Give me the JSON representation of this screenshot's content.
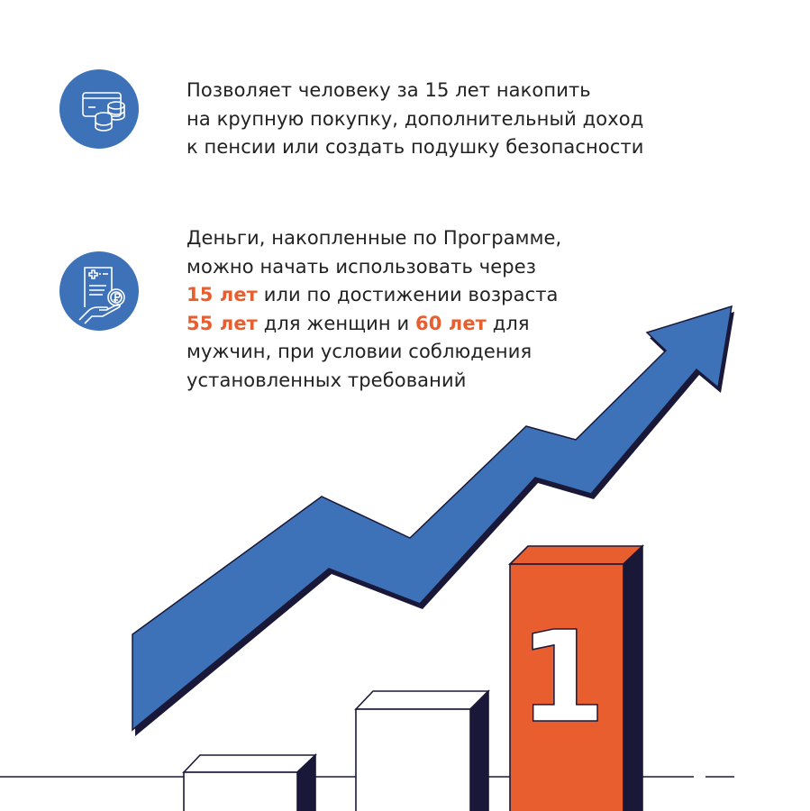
{
  "block1": {
    "icon": "card-coins-icon",
    "lines": [
      "Позволяет человеку за 15 лет накопить",
      "на крупную покупку, дополнительный доход",
      "к пенсии или создать подушку безопасности"
    ]
  },
  "block2": {
    "icon": "document-ruble-hand-icon",
    "line1": "Деньги, накопленные по Программе,",
    "line2": "можно начать использовать через",
    "line3_hl": "15 лет",
    "line3_rest": " или по достижении возраста",
    "line4_hl1": "55 лет",
    "line4_mid": " для женщин и ",
    "line4_hl2": "60 лет",
    "line4_rest": " для",
    "line5": "мужчин, при условии соблюдения",
    "line6": "установленных требований"
  },
  "illustration": {
    "podium_number": "1",
    "colors": {
      "blue": "#3d72b8",
      "orange": "#e95e2f",
      "dark": "#1a1838"
    }
  }
}
